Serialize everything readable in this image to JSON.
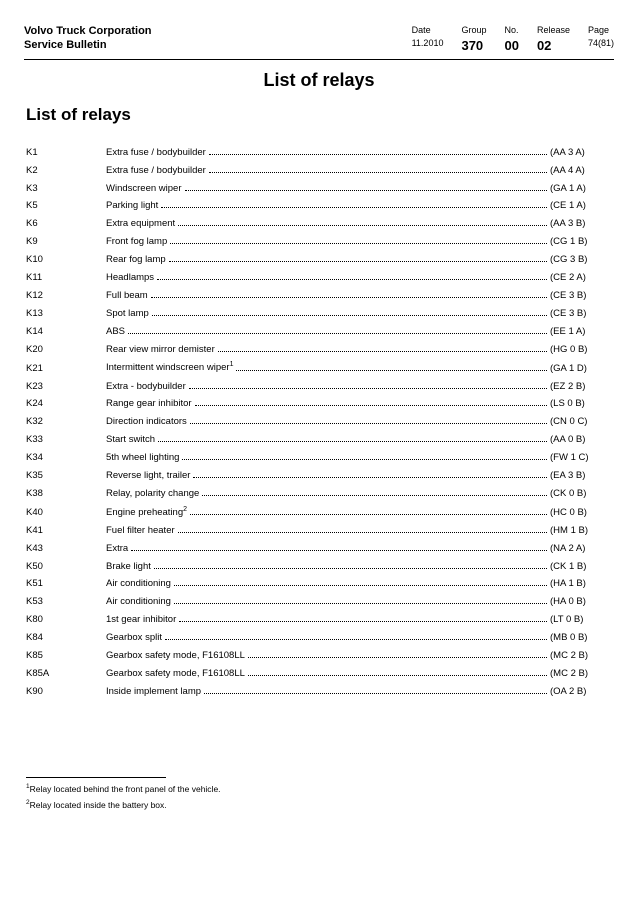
{
  "header": {
    "company": "Volvo Truck Corporation",
    "doc": "Service Bulletin",
    "cols": [
      {
        "label": "Date",
        "value": "11.2010",
        "big": false
      },
      {
        "label": "Group",
        "value": "370",
        "big": true
      },
      {
        "label": "No.",
        "value": "00",
        "big": true
      },
      {
        "label": "Release",
        "value": "02",
        "big": true
      },
      {
        "label": "Page",
        "value": "74(81)",
        "big": false
      }
    ]
  },
  "main_title": "List of relays",
  "section_title": "List of relays",
  "relays": [
    {
      "id": "K1",
      "desc": "Extra fuse / bodybuilder",
      "sup": "",
      "code": "(AA 3 A)"
    },
    {
      "id": "K2",
      "desc": "Extra fuse / bodybuilder",
      "sup": "",
      "code": "(AA 4 A)"
    },
    {
      "id": "K3",
      "desc": "Windscreen wiper",
      "sup": "",
      "code": "(GA 1 A)"
    },
    {
      "id": "K5",
      "desc": "Parking light",
      "sup": "",
      "code": "(CE 1 A)"
    },
    {
      "id": "K6",
      "desc": "Extra equipment",
      "sup": "",
      "code": "(AA 3 B)"
    },
    {
      "id": "K9",
      "desc": "Front fog lamp",
      "sup": "",
      "code": "(CG 1 B)"
    },
    {
      "id": "K10",
      "desc": "Rear fog lamp",
      "sup": "",
      "code": "(CG 3 B)"
    },
    {
      "id": "K11",
      "desc": "Headlamps",
      "sup": "",
      "code": "(CE 2 A)"
    },
    {
      "id": "K12",
      "desc": "Full beam",
      "sup": "",
      "code": "(CE 3 B)"
    },
    {
      "id": "K13",
      "desc": "Spot lamp",
      "sup": "",
      "code": "(CE 3 B)"
    },
    {
      "id": "K14",
      "desc": "ABS",
      "sup": "",
      "code": "(EE 1 A)"
    },
    {
      "id": "K20",
      "desc": "Rear view mirror demister",
      "sup": "",
      "code": "(HG 0 B)"
    },
    {
      "id": "K21",
      "desc": "Intermittent windscreen wiper",
      "sup": "1",
      "code": "(GA 1 D)"
    },
    {
      "id": "K23",
      "desc": "Extra - bodybuilder",
      "sup": "",
      "code": "(EZ 2 B)"
    },
    {
      "id": "K24",
      "desc": "Range gear inhibitor",
      "sup": "",
      "code": "(LS 0 B)"
    },
    {
      "id": "K32",
      "desc": "Direction indicators",
      "sup": "",
      "code": "(CN 0 C)"
    },
    {
      "id": "K33",
      "desc": "Start switch",
      "sup": "",
      "code": "(AA 0 B)"
    },
    {
      "id": "K34",
      "desc": "5th wheel lighting",
      "sup": "",
      "code": "(FW 1 C)"
    },
    {
      "id": "K35",
      "desc": "Reverse light, trailer",
      "sup": "",
      "code": "(EA 3 B)"
    },
    {
      "id": "K38",
      "desc": "Relay, polarity change",
      "sup": "",
      "code": "(CK 0 B)"
    },
    {
      "id": "K40",
      "desc": "Engine preheating",
      "sup": "2",
      "code": "(HC 0 B)"
    },
    {
      "id": "K41",
      "desc": "Fuel filter heater",
      "sup": "",
      "code": "(HM 1 B)"
    },
    {
      "id": "K43",
      "desc": "Extra",
      "sup": "",
      "code": "(NA 2 A)"
    },
    {
      "id": "K50",
      "desc": "Brake light",
      "sup": "",
      "code": "(CK 1 B)"
    },
    {
      "id": "K51",
      "desc": "Air conditioning",
      "sup": "",
      "code": "(HA 1 B)"
    },
    {
      "id": "K53",
      "desc": "Air conditioning",
      "sup": "",
      "code": "(HA 0 B)"
    },
    {
      "id": "K80",
      "desc": "1st gear inhibitor",
      "sup": "",
      "code": "(LT 0 B)"
    },
    {
      "id": "K84",
      "desc": "Gearbox split",
      "sup": "",
      "code": "(MB 0 B)"
    },
    {
      "id": "K85",
      "desc": "Gearbox safety mode, F16108LL",
      "sup": "",
      "code": "(MC 2 B)"
    },
    {
      "id": "K85A",
      "desc": "Gearbox safety mode, F16108LL",
      "sup": "",
      "code": "(MC 2 B)"
    },
    {
      "id": "K90",
      "desc": "Inside implement lamp",
      "sup": "",
      "code": "(OA 2 B)"
    }
  ],
  "footnotes": [
    {
      "num": "1",
      "text": "Relay located behind the front panel of the vehicle."
    },
    {
      "num": "2",
      "text": "Relay located inside the battery box."
    }
  ]
}
